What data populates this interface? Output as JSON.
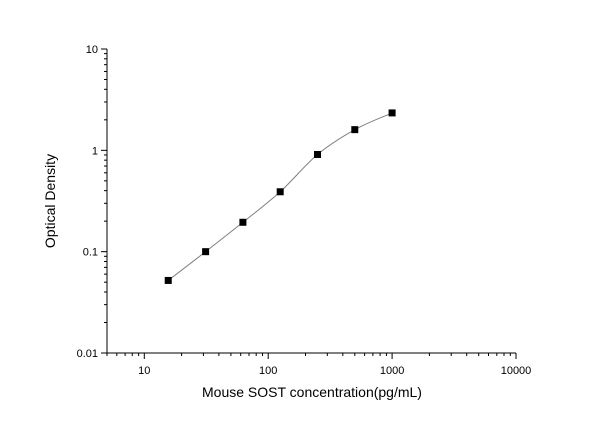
{
  "chart_data": {
    "type": "scatter",
    "title": "",
    "xlabel": "Mouse SOST concentration(pg/mL)",
    "ylabel": "Optical Density",
    "x_scale": "log",
    "y_scale": "log",
    "xlim": [
      5,
      10000
    ],
    "ylim": [
      0.01,
      10
    ],
    "x_ticks": [
      10,
      100,
      1000,
      10000
    ],
    "x_tick_labels": [
      "10",
      "100",
      "1000",
      "10000"
    ],
    "y_ticks": [
      0.01,
      0.1,
      1,
      10
    ],
    "y_tick_labels": [
      "0.01",
      "0.1",
      "1",
      "10"
    ],
    "grid": false,
    "legend": "none",
    "series": [
      {
        "marker": "square",
        "color": "#000000",
        "fit_line_color": "#808080",
        "x": [
          15.6,
          31.25,
          62.5,
          125,
          250,
          500,
          1000
        ],
        "y": [
          0.052,
          0.1,
          0.195,
          0.39,
          0.91,
          1.6,
          2.34
        ]
      }
    ]
  }
}
